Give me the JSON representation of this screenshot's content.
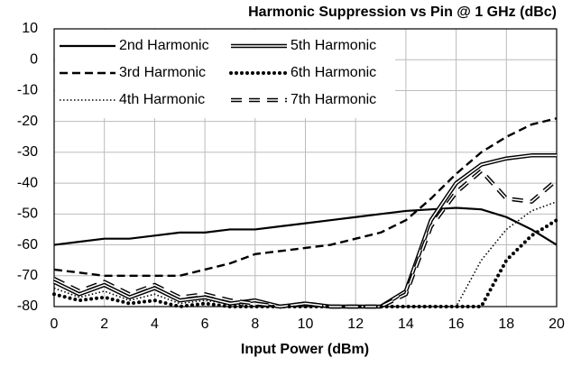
{
  "chart_data": {
    "type": "line",
    "title": "Harmonic Suppression vs Pin @ 1 GHz (dBc)",
    "x_label": "Input Power (dBm)",
    "x": [
      0,
      1,
      2,
      3,
      4,
      5,
      6,
      7,
      8,
      9,
      10,
      11,
      12,
      13,
      14,
      15,
      16,
      17,
      18,
      19,
      20
    ],
    "series": [
      {
        "name": "2nd Harmonic",
        "color": "#000000",
        "line_style": "solid",
        "values": [
          -60,
          -59,
          -58,
          -58,
          -57,
          -56,
          -56,
          -55,
          -55,
          -54,
          -53,
          -52,
          -51,
          -50,
          -49,
          -48.5,
          -48,
          -48.5,
          -51,
          -55,
          -60
        ]
      },
      {
        "name": "3rd Harmonic",
        "color": "#000000",
        "line_style": "dashed",
        "values": [
          -68,
          -69,
          -70,
          -70,
          -70,
          -70,
          -68,
          -66,
          -63,
          -62,
          -61,
          -60,
          -58,
          -56,
          -52,
          -45,
          -37,
          -30,
          -25,
          -21,
          -19
        ]
      },
      {
        "name": "4th Harmonic",
        "color": "#000000",
        "line_style": "dotted",
        "values": [
          -74,
          -77,
          -75,
          -78,
          -76,
          -79,
          -78,
          -79,
          -80,
          -80,
          -80,
          -80,
          -80,
          -80,
          -80,
          -80,
          -80,
          -65,
          -55,
          -49,
          -46
        ]
      },
      {
        "name": "5th Harmonic",
        "color": "#000000",
        "line_style": "double",
        "values": [
          -72,
          -76,
          -73,
          -77,
          -74,
          -78,
          -77,
          -79,
          -78,
          -80,
          -79,
          -80,
          -80,
          -80,
          -75,
          -52,
          -40,
          -34,
          -32,
          -31,
          -31
        ]
      },
      {
        "name": "6th Harmonic",
        "color": "#000000",
        "line_style": "round-dotted",
        "values": [
          -76,
          -78,
          -77,
          -79,
          -78,
          -80,
          -79,
          -80,
          -80,
          -80,
          -80,
          -80,
          -80,
          -80,
          -80,
          -80,
          -80,
          -80,
          -65,
          -57,
          -52
        ]
      },
      {
        "name": "7th Harmonic",
        "color": "#000000",
        "line_style": "double-dashed",
        "values": [
          -71,
          -75,
          -72,
          -76,
          -73,
          -77,
          -76,
          -78,
          -79,
          -80,
          -79,
          -80,
          -80,
          -80,
          -76,
          -54,
          -43,
          -36,
          -45,
          -46,
          -39
        ]
      }
    ],
    "xlim": [
      0,
      20
    ],
    "xticks": [
      0,
      2,
      4,
      6,
      8,
      10,
      12,
      14,
      16,
      18,
      20
    ],
    "ylim": [
      -80,
      10
    ],
    "yticks": [
      -80,
      -70,
      -60,
      -50,
      -40,
      -30,
      -20,
      -10,
      0,
      10
    ],
    "grid": true,
    "legend": "upper left"
  }
}
